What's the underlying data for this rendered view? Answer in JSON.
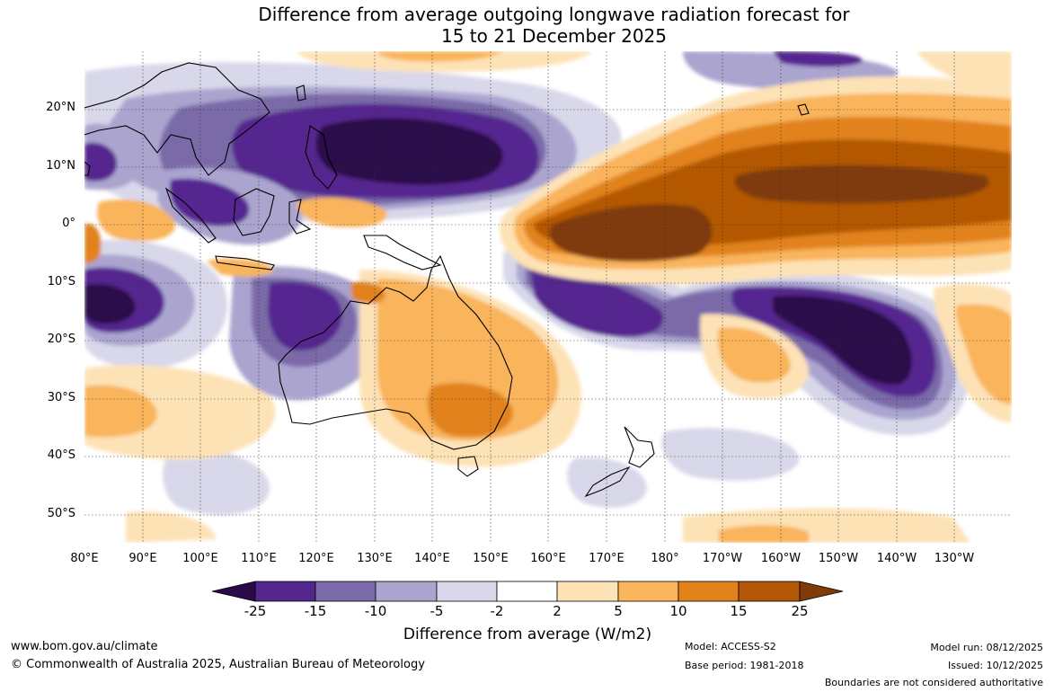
{
  "title": {
    "line1": "Difference from average outgoing longwave radiation forecast for",
    "line2": "15 to 21 December 2025"
  },
  "map": {
    "lat_labels": [
      "20°N",
      "10°N",
      "0°",
      "10°S",
      "20°S",
      "30°S",
      "40°S",
      "50°S"
    ],
    "lon_labels": [
      "80°E",
      "90°E",
      "100°E",
      "110°E",
      "120°E",
      "130°E",
      "140°E",
      "150°E",
      "160°E",
      "170°E",
      "180°",
      "170°W",
      "160°W",
      "150°W",
      "140°W",
      "130°W"
    ],
    "lat_range": [
      -55,
      30
    ],
    "lon_range": [
      80,
      244
    ]
  },
  "colorbar": {
    "ticks": [
      "-25",
      "-15",
      "-10",
      "-5",
      "-2",
      "2",
      "5",
      "10",
      "15",
      "25"
    ],
    "colors": [
      "#2b0a4a",
      "#54278f",
      "#7a6ba8",
      "#aaa4cf",
      "#d8d8ea",
      "#ffffff",
      "#fde2b6",
      "#f9b45c",
      "#e1821a",
      "#b35806",
      "#7f3b08"
    ],
    "title": "Difference from average (W/m2)"
  },
  "footer": {
    "website": "www.bom.gov.au/climate",
    "copyright": "© Commonwealth of Australia 2025, Australian Bureau of Meteorology",
    "model": "Model: ACCESS-S2",
    "base_period": "Base period: 1981-2018",
    "model_run": "Model run: 08/12/2025",
    "issued": "Issued: 10/12/2025",
    "boundaries": "Boundaries are not considered authoritative"
  }
}
